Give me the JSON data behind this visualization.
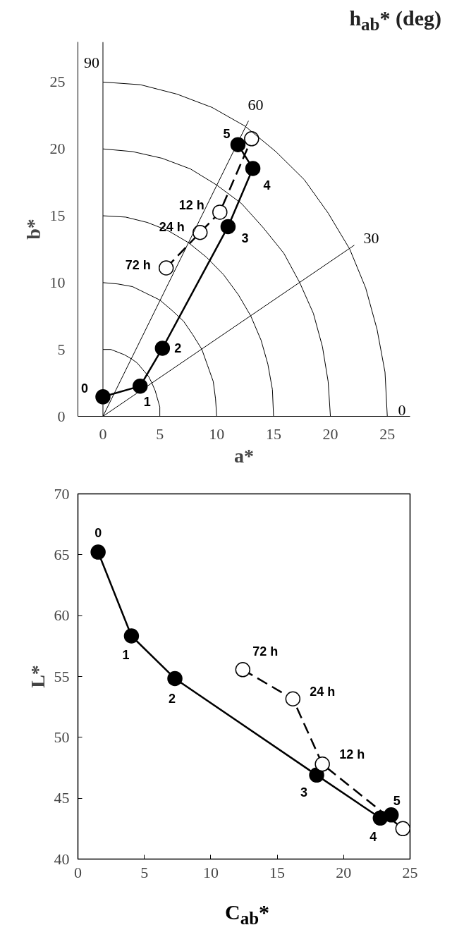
{
  "chart_data": [
    {
      "type": "line",
      "xlabel": "a*",
      "ylabel": "b*",
      "xlim": [
        -2.2,
        27
      ],
      "ylim": [
        0,
        28
      ],
      "xticks": [
        0,
        5,
        10,
        15,
        20,
        25
      ],
      "yticks": [
        0,
        5,
        10,
        15,
        20,
        25
      ],
      "marker": "circle",
      "series": [
        {
          "color": "#000000",
          "line_style": "solid",
          "x": [
            0,
            3.27,
            5.23,
            11.0,
            13.18,
            11.87
          ],
          "values": [
            1.46,
            2.26,
            5.09,
            14.19,
            18.54,
            20.32
          ]
        },
        {
          "color": "#ffffff",
          "line_style": "dashed",
          "x": [
            5.56,
            8.54,
            10.28,
            13.07
          ],
          "values": [
            11.1,
            13.75,
            15.27,
            20.76
          ]
        },
        {
          "color": "#000000",
          "marker": "none",
          "x": [
            0,
            22.1
          ],
          "values": [
            0,
            12.8
          ]
        },
        {
          "color": "#000000",
          "marker": "none",
          "x": [
            0,
            12.8
          ],
          "values": [
            0,
            22.1
          ]
        },
        {
          "color": "#000000",
          "marker": "none",
          "x": [
            5,
            5,
            4.8,
            4.6,
            4.3,
            4,
            3.5,
            3,
            2.5,
            1.9,
            1.3,
            0.7,
            0
          ],
          "values": [
            0,
            0.7,
            1.3,
            1.9,
            2.5,
            3,
            3.5,
            4,
            4.3,
            4.6,
            4.8,
            5,
            5
          ]
        },
        {
          "color": "#000000",
          "marker": "none",
          "x": [
            10,
            9.9,
            9.7,
            9.2,
            8.7,
            7.9,
            7.1,
            6.1,
            5,
            3.8,
            2.6,
            1.3,
            0
          ],
          "values": [
            0,
            1.3,
            2.6,
            3.8,
            5,
            6.1,
            7.1,
            7.9,
            8.7,
            9.2,
            9.7,
            9.9,
            10
          ]
        },
        {
          "color": "#000000",
          "marker": "none",
          "x": [
            15,
            14.9,
            14.5,
            13.9,
            13,
            11.9,
            10.6,
            9.1,
            7.5,
            5.7,
            3.9,
            2,
            0
          ],
          "values": [
            0,
            2,
            3.9,
            5.7,
            7.5,
            9.1,
            10.6,
            11.9,
            13,
            13.9,
            14.5,
            14.9,
            15
          ]
        },
        {
          "color": "#000000",
          "marker": "none",
          "x": [
            20,
            19.8,
            19.3,
            18.5,
            17.3,
            15.9,
            14.1,
            12.2,
            10,
            7.7,
            5.2,
            2.6,
            0
          ],
          "values": [
            0,
            2.6,
            5.2,
            7.7,
            10,
            12.2,
            14.1,
            15.9,
            17.3,
            18.5,
            19.3,
            19.8,
            20
          ]
        },
        {
          "color": "#000000",
          "marker": "none",
          "x": [
            25,
            24.8,
            24.1,
            23.1,
            21.7,
            19.8,
            17.7,
            15.2,
            12.5,
            9.6,
            6.5,
            3.3,
            0
          ],
          "values": [
            0,
            3.3,
            6.5,
            9.6,
            12.5,
            15.2,
            17.7,
            19.8,
            21.7,
            23.1,
            24.1,
            24.8,
            25
          ]
        }
      ],
      "ref_lines": [
        {
          "axis": "x",
          "value": 0
        }
      ],
      "annotations": [
        {
          "text": "0",
          "x": 0,
          "y": 1.46
        },
        {
          "text": "1",
          "x": 3.27,
          "y": 2.26
        },
        {
          "text": "2",
          "x": 5.23,
          "y": 5.09
        },
        {
          "text": "3",
          "x": 11.0,
          "y": 14.19
        },
        {
          "text": "4",
          "x": 13.18,
          "y": 18.54
        },
        {
          "text": "5",
          "x": 11.87,
          "y": 20.32
        },
        {
          "text": "12 h",
          "x": 10.28,
          "y": 15.27
        },
        {
          "text": "24 h",
          "x": 8.54,
          "y": 13.75
        },
        {
          "text": "72 h",
          "x": 5.56,
          "y": 11.1
        },
        "0",
        {
          "text": "30",
          "x": 22.1,
          "y": 12.8
        },
        {
          "text": "60",
          "x": 12.8,
          "y": 22.1
        },
        {
          "text": "90",
          "x": 0,
          "y": 25.5
        },
        "h$_{ab}$* (deg)"
      ]
    },
    {
      "type": "line",
      "xlabel": "C$_{ab}$*",
      "ylabel": "L*",
      "xlim": [
        0,
        25
      ],
      "ylim": [
        40,
        70
      ],
      "xticks": [
        0,
        5,
        10,
        15,
        20,
        25
      ],
      "yticks": [
        40,
        45,
        50,
        55,
        60,
        65,
        70
      ],
      "marker": "circle",
      "series": [
        {
          "color": "#000000",
          "line_style": "solid",
          "x": [
            1.52,
            4.03,
            7.3,
            17.97,
            22.76,
            23.58
          ],
          "values": [
            65.22,
            58.33,
            54.83,
            46.9,
            43.37,
            43.63
          ]
        },
        {
          "color": "#ffffff",
          "line_style": "dashed",
          "x": [
            12.41,
            16.18,
            18.4,
            24.46
          ],
          "values": [
            55.56,
            53.16,
            47.8,
            42.5
          ]
        }
      ],
      "annotations": [
        {
          "text": "0",
          "x": 1.52,
          "y": 65.22
        },
        {
          "text": "1",
          "x": 4.03,
          "y": 58.33
        },
        {
          "text": "2",
          "x": 7.3,
          "y": 54.83
        },
        {
          "text": "3",
          "x": 17.97,
          "y": 46.9
        },
        {
          "text": "4",
          "x": 22.76,
          "y": 43.37
        },
        {
          "text": "5",
          "x": 23.58,
          "y": 43.63
        },
        {
          "text": "72 h",
          "x": 12.41,
          "y": 55.56
        },
        {
          "text": "24 h",
          "x": 16.18,
          "y": 53.16
        },
        {
          "text": "12 h",
          "x": 18.4,
          "y": 47.8
        }
      ]
    }
  ]
}
